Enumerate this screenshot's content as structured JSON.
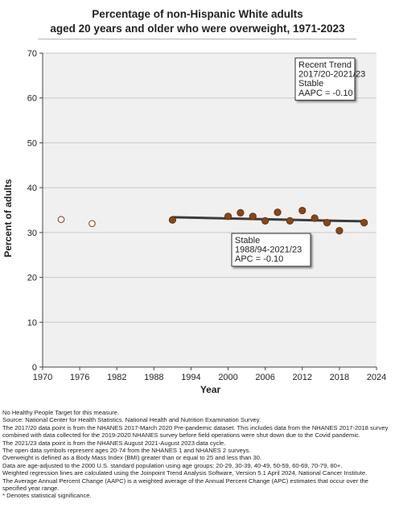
{
  "chart_data": {
    "type": "scatter",
    "title_lines": [
      "Percentage of non-Hispanic White adults",
      "aged 20 years and older who were overweight, 1971-2023"
    ],
    "xlabel": "Year",
    "ylabel": "Percent of adults",
    "xlim": [
      1970,
      2024
    ],
    "ylim": [
      0,
      70
    ],
    "x_ticks": [
      1970,
      1976,
      1982,
      1988,
      1994,
      2000,
      2006,
      2012,
      2018,
      2024
    ],
    "y_ticks": [
      0,
      10,
      20,
      30,
      40,
      50,
      60,
      70
    ],
    "grid": "horizontal",
    "series": [
      {
        "style": "open",
        "points": [
          {
            "x": 1973,
            "y": 32.9
          },
          {
            "x": 1978,
            "y": 32.0
          }
        ]
      },
      {
        "style": "filled",
        "points": [
          {
            "x": 1991,
            "y": 32.8
          },
          {
            "x": 2000,
            "y": 33.6
          },
          {
            "x": 2002,
            "y": 34.4
          },
          {
            "x": 2004,
            "y": 33.6
          },
          {
            "x": 2006,
            "y": 32.6
          },
          {
            "x": 2008,
            "y": 34.5
          },
          {
            "x": 2010,
            "y": 32.6
          },
          {
            "x": 2012,
            "y": 34.9
          },
          {
            "x": 2014,
            "y": 33.2
          },
          {
            "x": 2016,
            "y": 32.2
          },
          {
            "x": 2018,
            "y": 30.4
          },
          {
            "x": 2022,
            "y": 32.2
          }
        ]
      }
    ],
    "trend_line": [
      {
        "x": 1991,
        "y": 33.4
      },
      {
        "x": 2018,
        "y": 32.6
      },
      {
        "x": 2022,
        "y": 32.5
      }
    ],
    "annotations": [
      {
        "lines": [
          "Recent Trend",
          "2017/20-2021/23",
          "Stable",
          "AAPC = -0.10"
        ]
      },
      {
        "lines": [
          "Stable",
          "1988/94-2021/23",
          "APC = -0.10"
        ]
      }
    ]
  },
  "notes": [
    "No Healthy People Target for this measure.",
    "Source: National Center for Health Statistics. National Health and Nutrition Examination Survey.",
    "The 2017/20 data point is from the NHANES 2017-March 2020 Pre-pandemic dataset. This includes data from the NHANES 2017-2018 survey combined with data collected for the 2019-2020 NHANES survey before field operations were shut down due to the Covid pandemic.",
    "The 2021/23 data point is from the NHANES August 2021-August 2023 data cycle.",
    "The open data symbols represent ages 20-74 from the NHANES 1 and NHANES 2 surveys.",
    "Overweight is defined as a Body Mass Index (BMI) greater than or equal to 25 and less than 30.",
    "Data are age-adjusted to the 2000 U.S. standard population using age groups: 20-29, 30-39, 40-49, 50-59, 60-69, 70-79, 80+.",
    "Weighted regression lines are calculated using the Joinpoint Trend Analysis Software, Version 5.1 April 2024, National Cancer Institute.",
    "The Average Annual Percent Change (AAPC) is a weighted average of the Annual Percent Change (APC) estimates that occur over the specified year range.",
    "* Denotes statistical significance."
  ],
  "colors": {
    "point_fill": "#8b4513",
    "point_stroke": "#5e2c08",
    "open_point": "#a0522d",
    "trend": "#3c3c3c",
    "grid": "#c8c8c8",
    "plot_bg": "#f0f0f0"
  }
}
